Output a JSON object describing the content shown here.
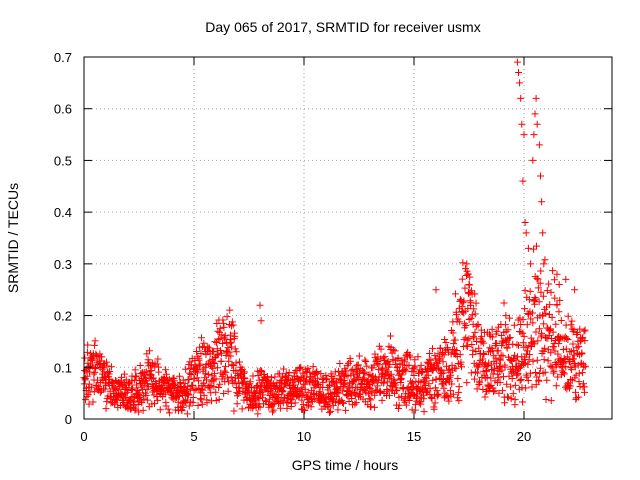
{
  "chart_data": {
    "type": "scatter",
    "title": "Day 065 of 2017, SRMTID for receiver usmx",
    "xlabel": "GPS time / hours",
    "ylabel": "SRMTID / TECUs",
    "xlim": [
      0,
      24
    ],
    "ylim": [
      0,
      0.7
    ],
    "xticks": [
      0,
      5,
      10,
      15,
      20
    ],
    "xtick_labels": [
      "0",
      "5",
      "10",
      "15",
      "20"
    ],
    "yticks": [
      0,
      0.1,
      0.2,
      0.3,
      0.4,
      0.5,
      0.6,
      0.7
    ],
    "ytick_labels": [
      "0",
      "0.1",
      "0.2",
      "0.3",
      "0.4",
      "0.5",
      "0.6",
      "0.7"
    ],
    "grid": true,
    "marker": "plus",
    "color": "#ff0000",
    "series": [
      {
        "name": "SRMTID",
        "baseline": {
          "x": [
            0,
            0.5,
            1,
            1.5,
            2,
            2.5,
            3,
            3.5,
            4,
            4.5,
            5,
            5.5,
            6,
            6.5,
            7,
            7.5,
            8,
            8.5,
            9,
            9.5,
            10,
            10.5,
            11,
            11.5,
            12,
            12.5,
            13,
            13.5,
            14,
            14.5,
            15,
            15.5,
            16,
            16.5,
            17,
            17.5,
            18,
            18.5,
            19,
            19.5,
            20,
            20.5,
            21,
            21.5,
            22,
            22.5,
            22.8
          ],
          "y": [
            0.08,
            0.09,
            0.07,
            0.05,
            0.05,
            0.06,
            0.08,
            0.06,
            0.05,
            0.05,
            0.08,
            0.09,
            0.1,
            0.14,
            0.08,
            0.04,
            0.06,
            0.05,
            0.06,
            0.06,
            0.06,
            0.06,
            0.05,
            0.06,
            0.07,
            0.07,
            0.07,
            0.08,
            0.09,
            0.08,
            0.07,
            0.07,
            0.08,
            0.1,
            0.15,
            0.2,
            0.12,
            0.11,
            0.13,
            0.11,
            0.14,
            0.2,
            0.17,
            0.16,
            0.12,
            0.11,
            0.13
          ]
        },
        "spikes": [
          {
            "x": 19.7,
            "y": 0.69
          },
          {
            "x": 19.75,
            "y": 0.67
          },
          {
            "x": 19.8,
            "y": 0.65
          },
          {
            "x": 19.85,
            "y": 0.62
          },
          {
            "x": 19.9,
            "y": 0.57
          },
          {
            "x": 20.0,
            "y": 0.55
          },
          {
            "x": 19.95,
            "y": 0.46
          },
          {
            "x": 20.05,
            "y": 0.38
          },
          {
            "x": 20.1,
            "y": 0.36
          },
          {
            "x": 20.2,
            "y": 0.33
          },
          {
            "x": 20.3,
            "y": 0.3
          },
          {
            "x": 20.4,
            "y": 0.5
          },
          {
            "x": 20.45,
            "y": 0.55
          },
          {
            "x": 20.5,
            "y": 0.59
          },
          {
            "x": 20.55,
            "y": 0.62
          },
          {
            "x": 20.6,
            "y": 0.57
          },
          {
            "x": 20.7,
            "y": 0.53
          },
          {
            "x": 20.75,
            "y": 0.47
          },
          {
            "x": 20.8,
            "y": 0.42
          },
          {
            "x": 20.85,
            "y": 0.36
          },
          {
            "x": 20.9,
            "y": 0.3
          },
          {
            "x": 17.4,
            "y": 0.3
          },
          {
            "x": 17.45,
            "y": 0.28
          },
          {
            "x": 17.5,
            "y": 0.26
          },
          {
            "x": 16.0,
            "y": 0.25
          },
          {
            "x": 8.0,
            "y": 0.22
          },
          {
            "x": 8.05,
            "y": 0.19
          },
          {
            "x": 21.5,
            "y": 0.28
          },
          {
            "x": 21.6,
            "y": 0.26
          },
          {
            "x": 21.9,
            "y": 0.27
          },
          {
            "x": 22.3,
            "y": 0.25
          },
          {
            "x": 6.7,
            "y": 0.18
          },
          {
            "x": 1.0,
            "y": 0.02
          },
          {
            "x": 2.0,
            "y": 0.02
          },
          {
            "x": 4.7,
            "y": 0.01
          },
          {
            "x": 7.9,
            "y": 0.01
          }
        ]
      }
    ]
  }
}
